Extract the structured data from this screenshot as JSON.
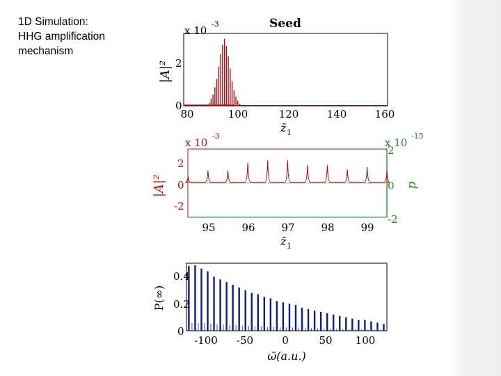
{
  "slide": {
    "caption_lines": [
      "1D Simulation:",
      "HHG amplification",
      "mechanism"
    ]
  },
  "colors": {
    "red": "#b01010",
    "green": "#1a8c1a",
    "blue": "#0b1d8c",
    "dark": "#000000"
  },
  "chart_data": [
    {
      "type": "line",
      "title": "Seed",
      "ylabel": "|A|²",
      "xlabel": "z̄",
      "xlabel_sub": "1",
      "scale_prefix": "x 10",
      "scale_exp": "-3",
      "xlim": [
        80,
        160
      ],
      "ylim": [
        0,
        3.5
      ],
      "xticks": [
        "80",
        "100",
        "120",
        "140",
        "160"
      ],
      "yticks": [
        "0",
        "2"
      ],
      "series": [
        {
          "name": "|A|^2",
          "color": "#b01010",
          "x": [
            90,
            90.75,
            91.5,
            92.25,
            93,
            93.75,
            94.5,
            95.25,
            96,
            96.75,
            97.5,
            98.25,
            99,
            99.75,
            100.5,
            101.25,
            102
          ],
          "y": [
            0.15,
            0.35,
            0.55,
            0.9,
            1.3,
            1.9,
            2.5,
            2.95,
            3.25,
            2.9,
            2.4,
            1.8,
            1.2,
            0.75,
            0.45,
            0.25,
            0.1
          ]
        }
      ]
    },
    {
      "type": "line",
      "ylabel": "|A|²",
      "ylabel_right": "p",
      "xlabel": "z̄",
      "xlabel_sub": "1",
      "scale_prefix": "x 10",
      "scale_exp": "-3",
      "scale_prefix_right": "x 10",
      "scale_exp_right": "-15",
      "xlim": [
        94.5,
        99.5
      ],
      "ylim": [
        -3,
        3
      ],
      "ylim_right": [
        -2.5,
        2.5
      ],
      "xticks": [
        "95",
        "96",
        "97",
        "98",
        "99"
      ],
      "yticks": [
        "-2",
        "0",
        "2"
      ],
      "yticks_right": [
        "-2",
        "0",
        "2"
      ],
      "series": [
        {
          "name": "|A|^2",
          "color": "#b01010",
          "x": [
            94.505,
            95.005,
            95.505,
            96.005,
            96.505,
            97.005,
            97.505,
            98.005,
            98.505,
            99.005,
            99.5
          ],
          "y": [
            0.6,
            1.1,
            1.1,
            1.8,
            2.0,
            2.0,
            1.6,
            1.6,
            1.2,
            1.4,
            1.1
          ]
        }
      ]
    },
    {
      "type": "bar",
      "ylabel": "P(∞)",
      "xlabel": "ω̄(a.u.)",
      "xlim": [
        -125,
        130
      ],
      "ylim": [
        0,
        0.5
      ],
      "xticks": [
        "-100",
        "-50",
        "0",
        "50",
        "100"
      ],
      "yticks": [
        "0",
        "0.2",
        "0.4"
      ],
      "series": [
        {
          "name": "spectrum",
          "color": "#0b1d8c",
          "x": [
            -122,
            -114,
            -106,
            -98,
            -90,
            -82,
            -74,
            -66,
            -58,
            -50,
            -42,
            -34,
            -26,
            -18,
            -10,
            -2,
            6,
            14,
            22,
            30,
            38,
            46,
            54,
            62,
            70,
            78,
            86,
            94,
            102,
            110,
            118,
            126
          ],
          "y": [
            0.48,
            0.485,
            0.46,
            0.44,
            0.4,
            0.38,
            0.36,
            0.34,
            0.32,
            0.3,
            0.28,
            0.27,
            0.25,
            0.24,
            0.22,
            0.21,
            0.2,
            0.19,
            0.17,
            0.16,
            0.15,
            0.14,
            0.13,
            0.12,
            0.11,
            0.1,
            0.09,
            0.08,
            0.08,
            0.07,
            0.06,
            0.05
          ]
        }
      ]
    }
  ]
}
